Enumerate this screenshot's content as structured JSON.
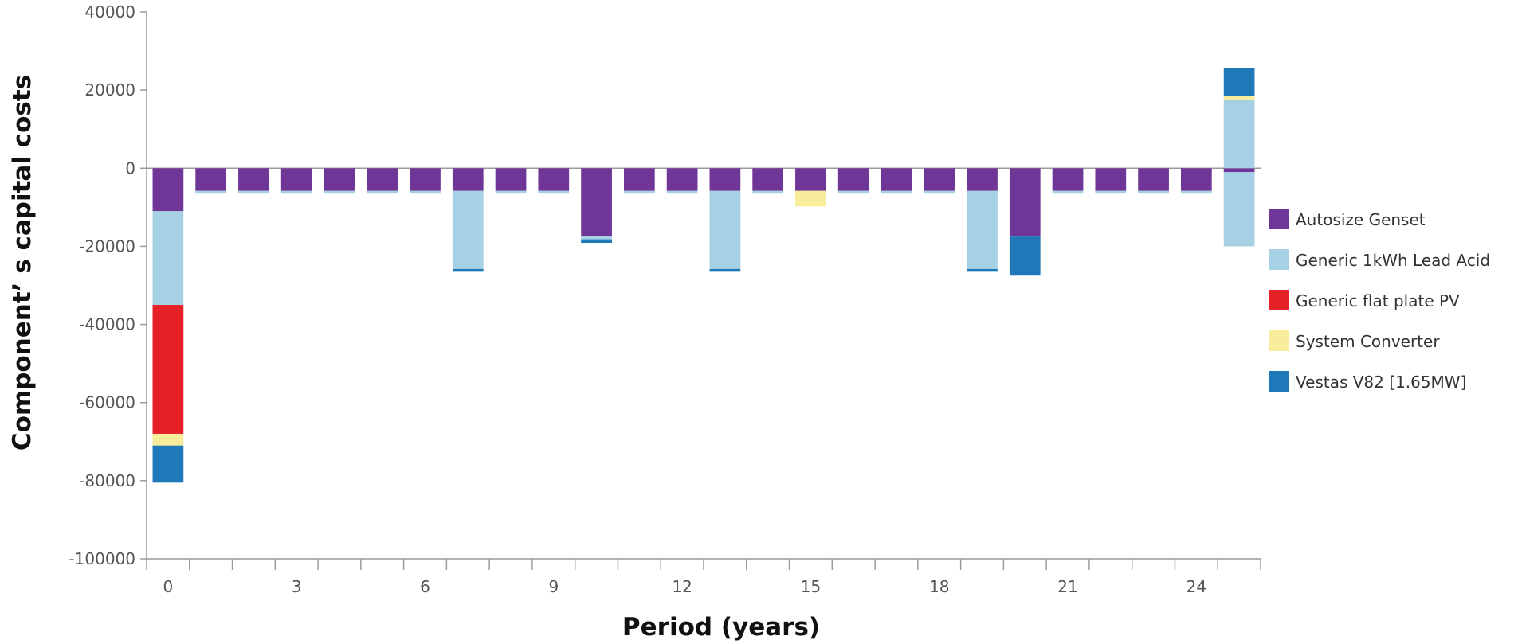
{
  "chart_data": {
    "type": "bar",
    "stacked": true,
    "xlabel": "Period (years)",
    "ylabel": "Component’   s capital costs",
    "ylim": [
      -100000,
      40000
    ],
    "yticks": [
      40000,
      20000,
      0,
      -20000,
      -40000,
      -60000,
      -80000,
      -100000
    ],
    "ytick_labels": [
      "40000",
      "20000",
      "0",
      "-20000",
      "-40000",
      "-60000",
      "-80000",
      "-100000"
    ],
    "x": [
      0,
      1,
      2,
      3,
      4,
      5,
      6,
      7,
      8,
      9,
      10,
      11,
      12,
      13,
      14,
      15,
      16,
      17,
      18,
      19,
      20,
      21,
      22,
      23,
      24,
      25
    ],
    "xtick_values": [
      0,
      3,
      6,
      9,
      12,
      15,
      18,
      21,
      24
    ],
    "xtick_labels": [
      "0",
      "3",
      "6",
      "9",
      "12",
      "15",
      "18",
      "21",
      "24"
    ],
    "grid": false,
    "legend_position": "right",
    "series": [
      {
        "name": "Autosize Genset",
        "color": "#6f3597",
        "values": [
          -11000,
          -5800,
          -5800,
          -5800,
          -5800,
          -5800,
          -5800,
          -5800,
          -5800,
          -5800,
          -17500,
          -5800,
          -5800,
          -5800,
          -5800,
          -5800,
          -5800,
          -5800,
          -5800,
          -5800,
          -17500,
          -5800,
          -5800,
          -5800,
          -5800,
          -1000
        ]
      },
      {
        "name": "Generic 1kWh Lead Acid",
        "color": "#a6d1e4",
        "values": [
          -24000,
          -700,
          -700,
          -700,
          -700,
          -700,
          -700,
          -20000,
          -700,
          -700,
          -700,
          -700,
          -700,
          -20000,
          -700,
          0,
          -700,
          -700,
          -700,
          -20000,
          0,
          -700,
          -700,
          -700,
          -700,
          -19000
        ],
        "positive_values": [
          0,
          0,
          0,
          0,
          0,
          0,
          0,
          0,
          0,
          0,
          0,
          0,
          0,
          0,
          0,
          0,
          0,
          0,
          0,
          0,
          0,
          0,
          0,
          0,
          0,
          17500
        ]
      },
      {
        "name": "Generic flat plate PV",
        "color": "#e52027",
        "values": [
          -33000,
          0,
          0,
          0,
          0,
          0,
          0,
          0,
          0,
          0,
          0,
          0,
          0,
          0,
          0,
          0,
          0,
          0,
          0,
          0,
          0,
          0,
          0,
          0,
          0,
          0
        ]
      },
      {
        "name": "System Converter",
        "color": "#f8ed9a",
        "values": [
          -3000,
          0,
          0,
          0,
          0,
          0,
          0,
          0,
          0,
          0,
          0,
          0,
          0,
          0,
          0,
          -4000,
          0,
          0,
          0,
          0,
          0,
          0,
          0,
          0,
          0,
          0
        ],
        "positive_values": [
          0,
          0,
          0,
          0,
          0,
          0,
          0,
          0,
          0,
          0,
          0,
          0,
          0,
          0,
          0,
          0,
          0,
          0,
          0,
          0,
          0,
          0,
          0,
          0,
          0,
          1000
        ]
      },
      {
        "name": "Vestas V82 [1.65MW]",
        "color": "#1f78b8",
        "values": [
          -9500,
          0,
          0,
          0,
          0,
          0,
          0,
          -700,
          0,
          0,
          -900,
          0,
          0,
          -700,
          0,
          0,
          0,
          0,
          0,
          -700,
          -10000,
          0,
          0,
          0,
          0,
          0
        ],
        "positive_values": [
          0,
          0,
          0,
          0,
          0,
          0,
          0,
          0,
          0,
          0,
          0,
          0,
          0,
          0,
          0,
          0,
          0,
          0,
          0,
          0,
          0,
          0,
          0,
          0,
          0,
          7200
        ]
      }
    ]
  }
}
